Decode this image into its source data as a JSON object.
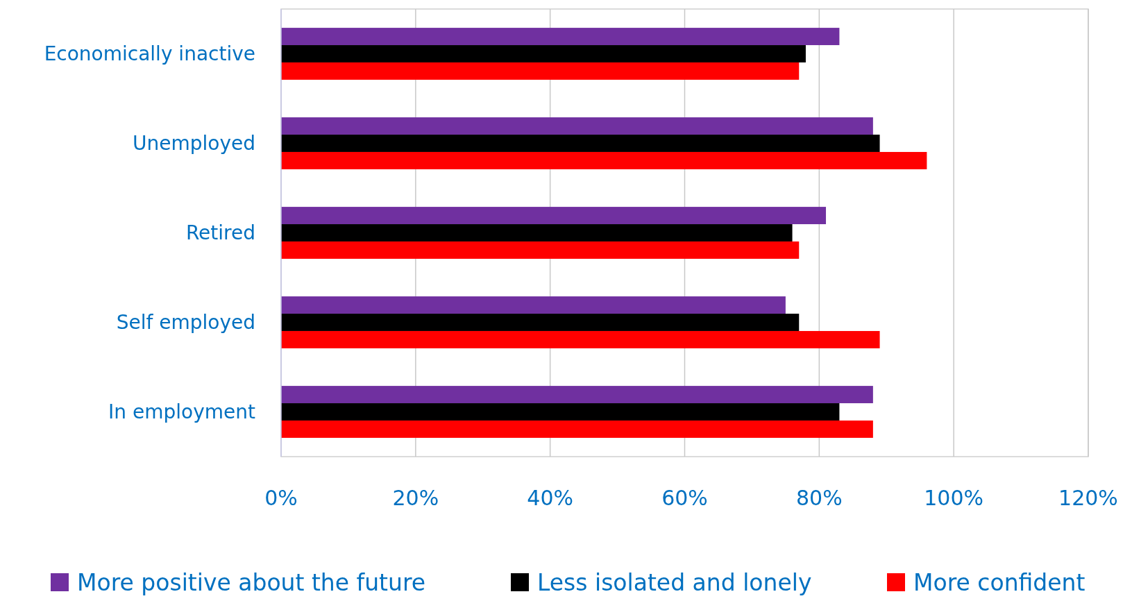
{
  "chart_data": {
    "type": "bar",
    "orientation": "horizontal",
    "categories": [
      "Economically inactive",
      "Unemployed",
      "Retired",
      "Self employed",
      "In employment"
    ],
    "series": [
      {
        "name": "More positive about the future",
        "color": "#7030a0",
        "values": [
          83,
          88,
          81,
          75,
          88
        ]
      },
      {
        "name": "Less isolated and lonely",
        "color": "#000000",
        "values": [
          78,
          89,
          76,
          77,
          83
        ]
      },
      {
        "name": "More confident",
        "color": "#ff0000",
        "values": [
          77,
          96,
          77,
          89,
          88
        ]
      }
    ],
    "xlim": [
      0,
      120
    ],
    "xticks": [
      {
        "value": 0,
        "label": "0%"
      },
      {
        "value": 20,
        "label": "20%"
      },
      {
        "value": 40,
        "label": "40%"
      },
      {
        "value": 60,
        "label": "60%"
      },
      {
        "value": 80,
        "label": "80%"
      },
      {
        "value": 100,
        "label": "100%"
      },
      {
        "value": 120,
        "label": "120%"
      }
    ],
    "grid": "x",
    "legend": "bottom"
  }
}
